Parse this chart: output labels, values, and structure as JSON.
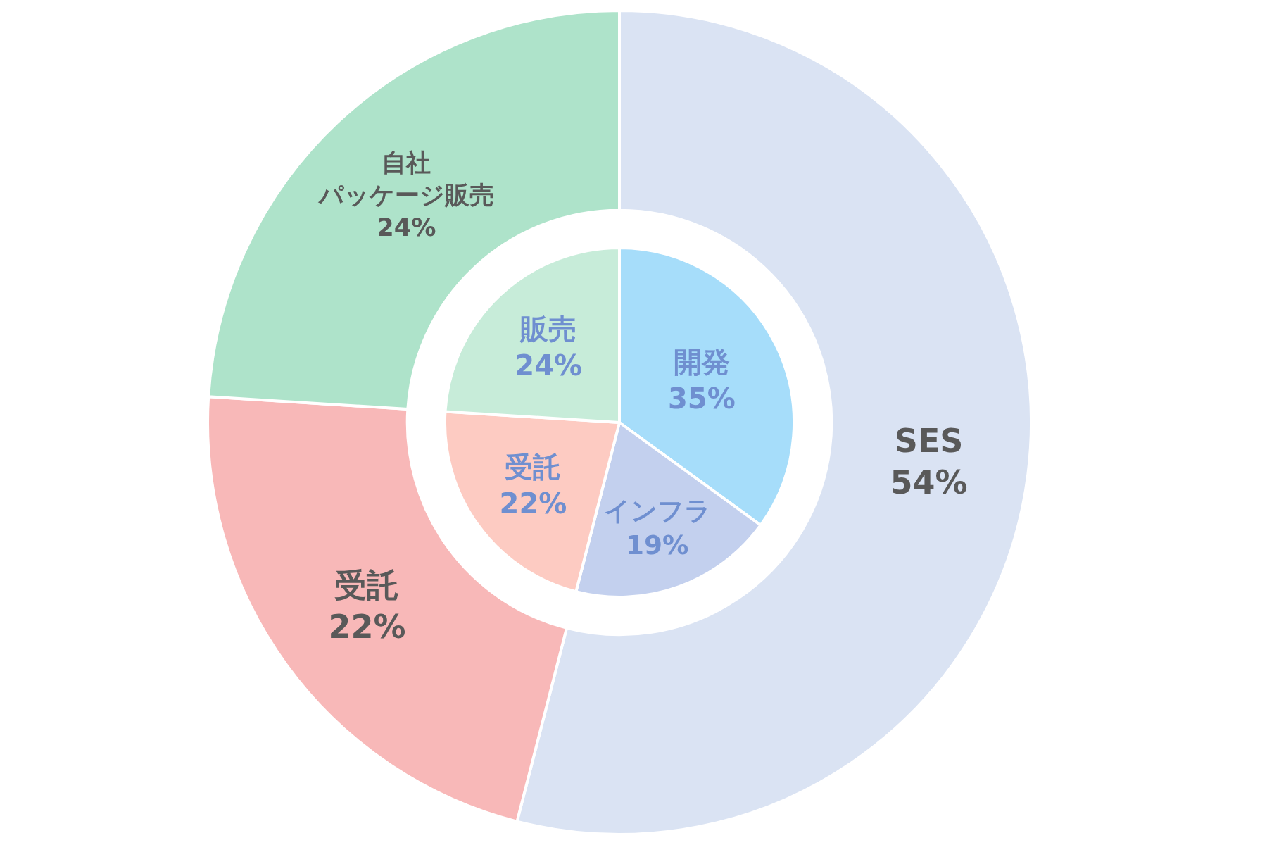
{
  "chart_data": [
    {
      "type": "donut",
      "categories": [
        "SES",
        "受託",
        "自社パッケージ販売"
      ],
      "values": [
        54,
        22,
        24
      ],
      "value_labels": [
        "54%",
        "22%",
        "24%"
      ],
      "colors": [
        "#dae3f3",
        "#f8b8b8",
        "#aee3ca"
      ]
    },
    {
      "type": "pie",
      "categories": [
        "開発",
        "インフラ",
        "受託",
        "販売"
      ],
      "values": [
        35,
        19,
        22,
        24
      ],
      "value_labels": [
        "35%",
        "19%",
        "22%",
        "24%"
      ],
      "colors": [
        "#a6ddfa",
        "#c3d0ee",
        "#fdcbc2",
        "#c7ecd9"
      ]
    }
  ]
}
